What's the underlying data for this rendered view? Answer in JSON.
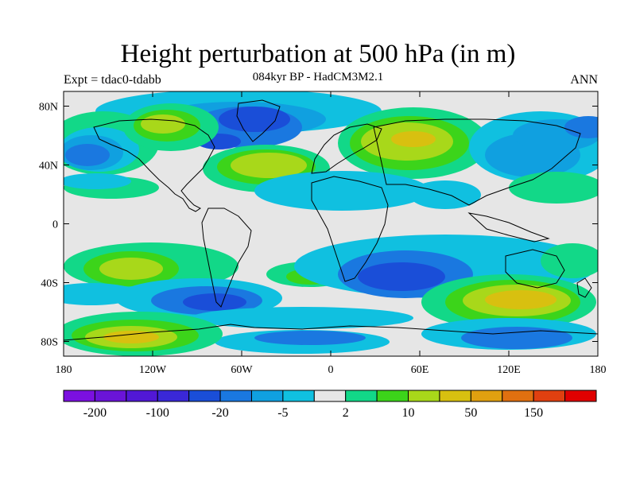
{
  "header": {
    "title": "Height perturbation at 500 hPa (in m)",
    "subtitle": "084kyr BP - HadCM3M2.1",
    "left_label": "Expt = tdac0-tdabb",
    "right_label": "ANN"
  },
  "map": {
    "lon_range": [
      -180,
      180
    ],
    "lat_range": [
      -90,
      90
    ],
    "lon_ticks": [
      {
        "value": -180,
        "label": "180"
      },
      {
        "value": -120,
        "label": "120W"
      },
      {
        "value": -60,
        "label": "60W"
      },
      {
        "value": 0,
        "label": "0"
      },
      {
        "value": 60,
        "label": "60E"
      },
      {
        "value": 120,
        "label": "120E"
      },
      {
        "value": 180,
        "label": "180"
      }
    ],
    "lat_ticks": [
      {
        "value": 80,
        "label": "80N"
      },
      {
        "value": 40,
        "label": "40N"
      },
      {
        "value": 0,
        "label": "0"
      },
      {
        "value": -40,
        "label": "40S"
      },
      {
        "value": -80,
        "label": "80S"
      }
    ],
    "background_color": "#e6e6e6"
  },
  "colorbar": {
    "colors": [
      "#7b10e0",
      "#6a14d8",
      "#5118d6",
      "#3a28d8",
      "#1a4ed8",
      "#1a78e0",
      "#10a0e0",
      "#10c0e0",
      "#e6e6e6",
      "#12d888",
      "#3cd41a",
      "#a8d81a",
      "#d8c010",
      "#e0a010",
      "#e07010",
      "#e04010",
      "#e00000"
    ],
    "labels": [
      {
        "after_box": 1,
        "text": "-200"
      },
      {
        "after_box": 3,
        "text": "-100"
      },
      {
        "after_box": 5,
        "text": "-20"
      },
      {
        "after_box": 7,
        "text": "-5"
      },
      {
        "after_box": 9,
        "text": "2"
      },
      {
        "after_box": 11,
        "text": "10"
      },
      {
        "after_box": 13,
        "text": "50"
      },
      {
        "after_box": 15,
        "text": "150"
      }
    ]
  }
}
